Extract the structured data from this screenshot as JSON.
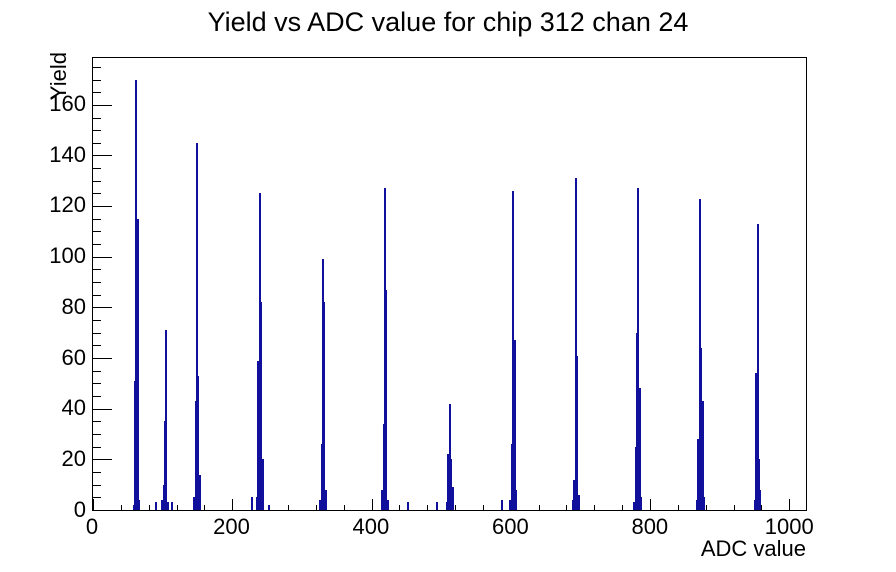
{
  "chart_data": {
    "type": "bar",
    "title": "Yield vs ADC value for chip 312 chan 24",
    "xlabel": "ADC value",
    "ylabel": "Yield",
    "xlim": [
      0,
      1024
    ],
    "ylim": [
      0,
      178.5
    ],
    "x_major_ticks": [
      0,
      200,
      400,
      600,
      800,
      1000
    ],
    "x_minor_step": 40,
    "y_major_ticks": [
      0,
      20,
      40,
      60,
      80,
      100,
      120,
      140,
      160
    ],
    "y_minor_step": 5,
    "grid": false,
    "legend": false,
    "bin_width_adc": 2,
    "line_color": "#10109c",
    "frame_color": "#000000",
    "background_color": "#ffffff",
    "clusters": [
      {
        "center_adc": 62,
        "bins": [
          2,
          51,
          170,
          115,
          4
        ]
      },
      {
        "center_adc": 105,
        "bins": [
          4,
          10,
          35,
          71,
          3
        ]
      },
      {
        "center_adc": 149,
        "bins": [
          5,
          43,
          145,
          53,
          14
        ]
      },
      {
        "center_adc": 239,
        "bins": [
          5,
          59,
          125,
          82,
          20
        ]
      },
      {
        "center_adc": 330,
        "bins": [
          4,
          26,
          99,
          82,
          8
        ]
      },
      {
        "center_adc": 419,
        "bins": [
          8,
          34,
          127,
          87,
          4
        ]
      },
      {
        "center_adc": 512,
        "bins": [
          3,
          22,
          42,
          20,
          9
        ]
      },
      {
        "center_adc": 603,
        "bins": [
          4,
          26,
          126,
          67,
          8
        ]
      },
      {
        "center_adc": 693,
        "bins": [
          4,
          12,
          131,
          61,
          6
        ]
      },
      {
        "center_adc": 783,
        "bins": [
          3,
          25,
          70,
          127,
          48,
          5
        ]
      },
      {
        "center_adc": 871,
        "bins": [
          4,
          28,
          123,
          64,
          43,
          5
        ]
      },
      {
        "center_adc": 954,
        "bins": [
          4,
          54,
          113,
          20,
          8
        ]
      }
    ],
    "satellite_bins": [
      {
        "adc": 90,
        "h": 3
      },
      {
        "adc": 113,
        "h": 3
      },
      {
        "adc": 228,
        "h": 5
      },
      {
        "adc": 253,
        "h": 2
      },
      {
        "adc": 452,
        "h": 3
      },
      {
        "adc": 494,
        "h": 3
      },
      {
        "adc": 587,
        "h": 4
      }
    ],
    "main_peaks": [
      {
        "adc": 62,
        "yield": 170
      },
      {
        "adc": 105,
        "yield": 71
      },
      {
        "adc": 149,
        "yield": 145
      },
      {
        "adc": 239,
        "yield": 125
      },
      {
        "adc": 330,
        "yield": 99
      },
      {
        "adc": 419,
        "yield": 127
      },
      {
        "adc": 512,
        "yield": 42
      },
      {
        "adc": 603,
        "yield": 126
      },
      {
        "adc": 693,
        "yield": 131
      },
      {
        "adc": 783,
        "yield": 127
      },
      {
        "adc": 871,
        "yield": 123
      },
      {
        "adc": 954,
        "yield": 113
      }
    ]
  }
}
